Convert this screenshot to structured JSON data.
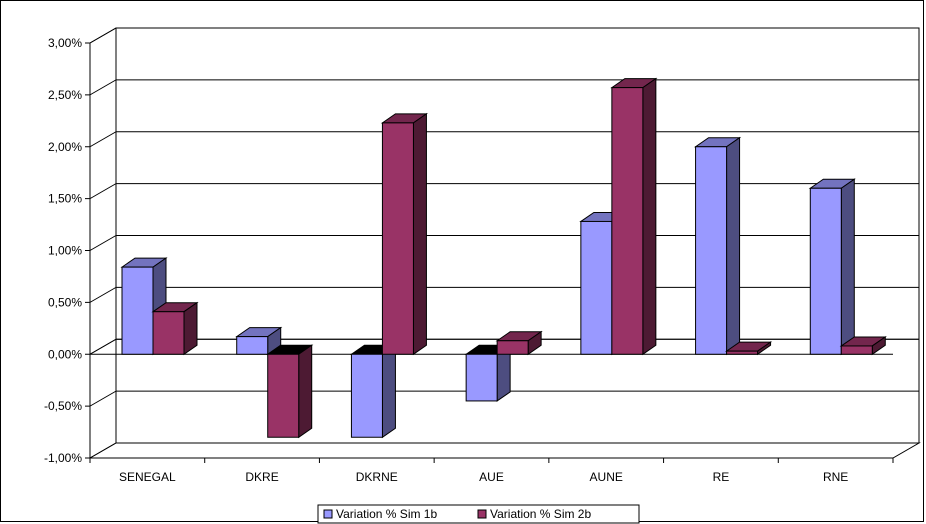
{
  "chart_data": {
    "type": "bar",
    "three_d": true,
    "categories": [
      "SENEGAL",
      "DKRE",
      "DKRNE",
      "AUE",
      "AUNE",
      "RE",
      "RNE"
    ],
    "series": [
      {
        "name": "Variation % Sim 1b",
        "values": [
          0.84,
          0.17,
          -0.8,
          -0.45,
          1.28,
          2.0,
          1.6
        ],
        "color": "#9999FF"
      },
      {
        "name": "Variation % Sim 2b",
        "values": [
          0.41,
          -0.8,
          2.23,
          0.13,
          2.57,
          0.03,
          0.08
        ],
        "color": "#993366"
      }
    ],
    "y_ticks": [
      "3,00%",
      "2,50%",
      "2,00%",
      "1,50%",
      "1,00%",
      "0,50%",
      "0,00%",
      "-0,50%",
      "-1,00%"
    ],
    "ylim": [
      -1.0,
      3.0
    ],
    "grid": true,
    "legend_position": "bottom",
    "title": "",
    "xlabel": "",
    "ylabel": ""
  }
}
